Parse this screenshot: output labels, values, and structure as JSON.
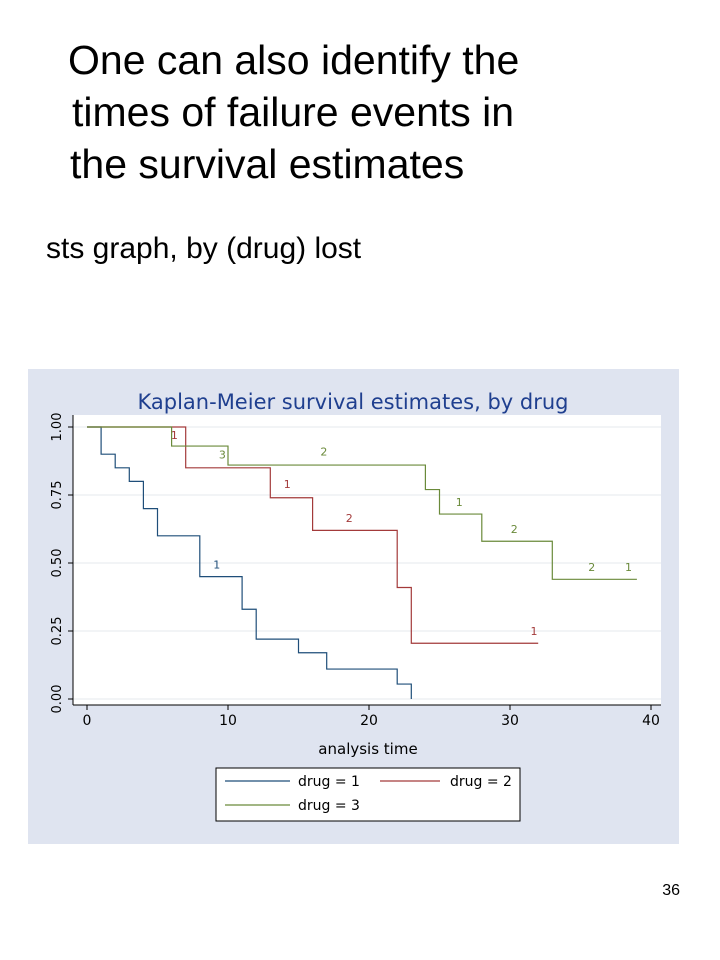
{
  "slide": {
    "title_lines": [
      "One can also identify the",
      "times of failure events in",
      "the survival estimates"
    ],
    "subtitle": "sts graph, by (drug) lost",
    "page_number": "36"
  },
  "colors": {
    "panel_background": "#dfe4f0",
    "plot_background": "#ffffff",
    "title_color": "#1f3f8f",
    "drug1": "#1f4e79",
    "drug2": "#a33a3a",
    "drug3": "#6a8a3a"
  },
  "chart_data": {
    "type": "line",
    "step": true,
    "title": "Kaplan-Meier survival estimates, by drug",
    "xlabel": "analysis time",
    "ylabel": "",
    "xlim": [
      0,
      40
    ],
    "ylim": [
      0,
      1
    ],
    "xticks": [
      "0",
      "10",
      "20",
      "30",
      "40"
    ],
    "yticks": [
      "0.00",
      "0.25",
      "0.50",
      "0.75",
      "1.00"
    ],
    "grid": true,
    "legend_position": "bottom",
    "series": [
      {
        "name": "drug = 1",
        "color": "#1f4e79",
        "x": [
          0,
          1,
          2,
          3,
          4,
          5,
          8,
          11,
          12,
          15,
          17,
          22,
          23
        ],
        "y": [
          1.0,
          0.9,
          0.85,
          0.8,
          0.7,
          0.6,
          0.45,
          0.33,
          0.22,
          0.17,
          0.11,
          0.055,
          0.0
        ]
      },
      {
        "name": "drug = 2",
        "color": "#a33a3a",
        "x": [
          0,
          6,
          7,
          13,
          16,
          22,
          23,
          32
        ],
        "y": [
          1.0,
          1.0,
          0.85,
          0.74,
          0.62,
          0.41,
          0.205,
          0.205
        ]
      },
      {
        "name": "drug = 3",
        "color": "#6a8a3a",
        "x": [
          0,
          6,
          10,
          24,
          25,
          28,
          33,
          39
        ],
        "y": [
          1.0,
          0.93,
          0.86,
          0.77,
          0.68,
          0.58,
          0.44,
          0.44
        ]
      }
    ],
    "annotations": [
      {
        "text": "1",
        "x": 6.2,
        "y": 0.955,
        "series": 1
      },
      {
        "text": "3",
        "x": 9.6,
        "y": 0.885,
        "series": 2
      },
      {
        "text": "2",
        "x": 16.8,
        "y": 0.895,
        "series": 2
      },
      {
        "text": "1",
        "x": 14.2,
        "y": 0.775,
        "series": 1
      },
      {
        "text": "2",
        "x": 18.6,
        "y": 0.65,
        "series": 1
      },
      {
        "text": "1",
        "x": 26.4,
        "y": 0.71,
        "series": 2
      },
      {
        "text": "2",
        "x": 30.3,
        "y": 0.61,
        "series": 2
      },
      {
        "text": "1",
        "x": 9.2,
        "y": 0.48,
        "series": 0
      },
      {
        "text": "1",
        "x": 31.7,
        "y": 0.235,
        "series": 1
      },
      {
        "text": "2",
        "x": 35.8,
        "y": 0.47,
        "series": 2
      },
      {
        "text": "1",
        "x": 38.4,
        "y": 0.47,
        "series": 2
      }
    ]
  }
}
